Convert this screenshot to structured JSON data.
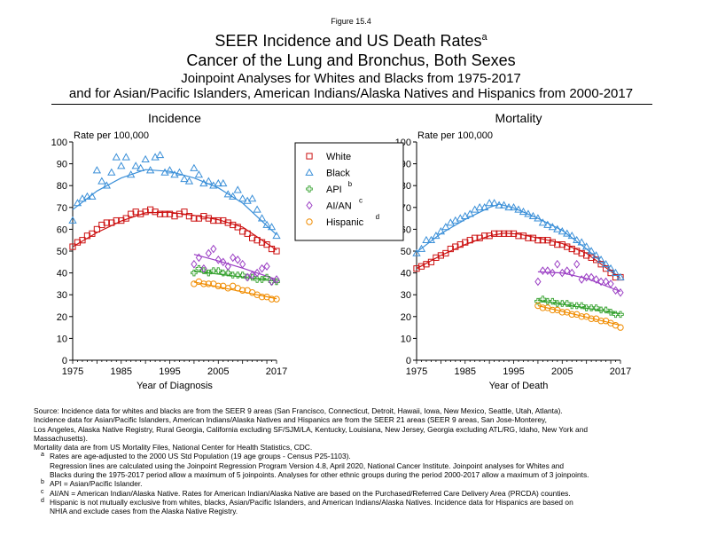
{
  "figure": {
    "label": "Figure 15.4",
    "title_line1": "SEER Incidence and US Death Rates",
    "title_sup": "a",
    "title_line2": "Cancer of the Lung and Bronchus, Both Sexes",
    "title_line3": "Joinpoint Analyses for Whites and Blacks from 1975-2017",
    "title_line4": "and for Asian/Pacific Islanders, American Indians/Alaska Natives and Hispanics from 2000-2017"
  },
  "legend": {
    "items": [
      {
        "label": "White",
        "sup": ""
      },
      {
        "label": "Black",
        "sup": ""
      },
      {
        "label": "API",
        "sup": "b"
      },
      {
        "label": "AI/AN",
        "sup": "c"
      },
      {
        "label": "Hispanic",
        "sup": "d"
      }
    ]
  },
  "colors": {
    "White": "#cc1111",
    "Black": "#3a8fd8",
    "API": "#33a02c",
    "AI/AN": "#9b3fc4",
    "Hispanic": "#f08c00"
  },
  "chart_data": [
    {
      "type": "scatter",
      "title": "Incidence",
      "ylabel": "Rate per 100,000",
      "xlabel": "Year of Diagnosis",
      "xlim": [
        1975,
        2017
      ],
      "ylim": [
        0,
        100
      ],
      "xticks": [
        1975,
        1985,
        1995,
        2005,
        2017
      ],
      "yticks": [
        0,
        10,
        20,
        30,
        40,
        50,
        60,
        70,
        80,
        90,
        100
      ],
      "series": [
        {
          "name": "White",
          "marker": "square",
          "x0": 1975,
          "values": [
            52,
            54,
            55,
            57,
            58,
            60,
            62,
            63,
            63,
            64,
            64,
            65,
            67,
            68,
            67,
            68,
            69,
            68,
            67,
            67,
            67,
            66,
            67,
            68,
            66,
            65,
            65,
            66,
            65,
            64,
            64,
            64,
            63,
            62,
            61,
            59,
            58,
            56,
            55,
            54,
            53,
            51,
            50
          ]
        },
        {
          "name": "Black",
          "marker": "triangle",
          "x0": 1975,
          "values": [
            64,
            72,
            74,
            75,
            75,
            87,
            82,
            80,
            86,
            93,
            89,
            93,
            85,
            89,
            88,
            92,
            87,
            93,
            94,
            86,
            87,
            85,
            86,
            83,
            82,
            88,
            85,
            81,
            82,
            80,
            81,
            81,
            76,
            75,
            78,
            74,
            73,
            74,
            69,
            65,
            62,
            61,
            57
          ]
        },
        {
          "name": "API",
          "marker": "plus",
          "x0": 2000,
          "values": [
            40,
            42,
            41,
            40,
            41,
            41,
            40,
            40,
            39,
            39,
            39,
            38,
            38,
            37,
            37,
            38,
            36,
            36
          ]
        },
        {
          "name": "AI/AN",
          "marker": "diamond",
          "x0": 2000,
          "values": [
            44,
            47,
            42,
            49,
            51,
            46,
            45,
            43,
            47,
            46,
            44,
            38,
            39,
            40,
            42,
            43,
            36,
            37
          ]
        },
        {
          "name": "Hispanic",
          "marker": "circle",
          "x0": 2000,
          "values": [
            35,
            36,
            35,
            35,
            35,
            34,
            34,
            33,
            34,
            33,
            32,
            32,
            31,
            30,
            29,
            29,
            28,
            28
          ]
        }
      ],
      "fits": [
        {
          "name": "White",
          "points": [
            [
              1975,
              52
            ],
            [
              1980,
              58.5
            ],
            [
              1985,
              63.8
            ],
            [
              1990,
              67.5
            ],
            [
              1995,
              67.8
            ],
            [
              2000,
              66.4
            ],
            [
              2005,
              64.4
            ],
            [
              2010,
              61
            ],
            [
              2017,
              50.5
            ]
          ]
        },
        {
          "name": "Black",
          "points": [
            [
              1975,
              69
            ],
            [
              1980,
              77.5
            ],
            [
              1985,
              83.5
            ],
            [
              1990,
              87.3
            ],
            [
              1995,
              86.5
            ],
            [
              2000,
              83.5
            ],
            [
              2005,
              79
            ],
            [
              2010,
              72
            ],
            [
              2017,
              57.5
            ]
          ]
        },
        {
          "name": "API",
          "points": [
            [
              2000,
              40.8
            ],
            [
              2017,
              36.2
            ]
          ]
        },
        {
          "name": "AI/AN",
          "points": [
            [
              2000,
              48.5
            ],
            [
              2005,
              45.5
            ],
            [
              2010,
              42.2
            ],
            [
              2017,
              37
            ]
          ]
        },
        {
          "name": "Hispanic",
          "points": [
            [
              2000,
              35.8
            ],
            [
              2017,
              28.2
            ]
          ]
        }
      ]
    },
    {
      "type": "scatter",
      "title": "Mortality",
      "ylabel": "Rate per 100,000",
      "xlabel": "Year of Death",
      "xlim": [
        1975,
        2017
      ],
      "ylim": [
        0,
        100
      ],
      "xticks": [
        1975,
        1985,
        1995,
        2005,
        2017
      ],
      "yticks": [
        0,
        10,
        20,
        30,
        40,
        50,
        60,
        70,
        80,
        90,
        100
      ],
      "series": [
        {
          "name": "White",
          "marker": "square",
          "x0": 1975,
          "values": [
            42,
            43,
            44,
            45,
            47,
            48,
            49,
            51,
            52,
            53,
            54,
            55,
            56,
            56,
            57,
            57,
            58,
            58,
            58,
            58,
            58,
            57,
            57,
            56,
            56,
            55,
            55,
            55,
            54,
            53,
            53,
            52,
            51,
            50,
            49,
            48,
            47,
            46,
            44,
            42,
            40,
            38,
            38
          ]
        },
        {
          "name": "Black",
          "marker": "triangle",
          "x0": 1975,
          "values": [
            49,
            51,
            55,
            55,
            57,
            59,
            61,
            63,
            64,
            65,
            66,
            67,
            69,
            70,
            70,
            72,
            72,
            71,
            71,
            70,
            70,
            69,
            68,
            67,
            66,
            65,
            63,
            62,
            61,
            60,
            59,
            58,
            57,
            55,
            54,
            52,
            50,
            48,
            46,
            44,
            42,
            40,
            38
          ]
        },
        {
          "name": "API",
          "marker": "plus",
          "x0": 2000,
          "values": [
            27,
            28,
            27,
            27,
            26,
            26,
            26,
            25,
            25,
            25,
            24,
            24,
            24,
            23,
            23,
            22,
            21,
            21
          ]
        },
        {
          "name": "AI/AN",
          "marker": "diamond",
          "x0": 2000,
          "values": [
            36,
            41,
            41,
            40,
            44,
            40,
            41,
            40,
            44,
            37,
            38,
            38,
            37,
            36,
            36,
            35,
            32,
            31
          ]
        },
        {
          "name": "Hispanic",
          "marker": "circle",
          "x0": 2000,
          "values": [
            25,
            24,
            24,
            23,
            23,
            22,
            22,
            21,
            21,
            20,
            20,
            19,
            19,
            18,
            18,
            17,
            16,
            15
          ]
        }
      ],
      "fits": [
        {
          "name": "White",
          "points": [
            [
              1975,
              42
            ],
            [
              1980,
              48
            ],
            [
              1985,
              53
            ],
            [
              1990,
              57
            ],
            [
              1993,
              58.2
            ],
            [
              1996,
              57.8
            ],
            [
              2000,
              56
            ],
            [
              2005,
              53.5
            ],
            [
              2010,
              49
            ],
            [
              2017,
              37.5
            ]
          ]
        },
        {
          "name": "Black",
          "points": [
            [
              1975,
              49.5
            ],
            [
              1980,
              58
            ],
            [
              1985,
              64.5
            ],
            [
              1990,
              70
            ],
            [
              1992,
              71.5
            ],
            [
              1995,
              69.8
            ],
            [
              2000,
              65
            ],
            [
              2005,
              59.5
            ],
            [
              2010,
              51
            ],
            [
              2017,
              37.5
            ]
          ]
        },
        {
          "name": "API",
          "points": [
            [
              2000,
              27.5
            ],
            [
              2017,
              21.3
            ]
          ]
        },
        {
          "name": "AI/AN",
          "points": [
            [
              2000,
              40.5
            ],
            [
              2005,
              40
            ],
            [
              2010,
              37.5
            ],
            [
              2017,
              31.5
            ]
          ]
        },
        {
          "name": "Hispanic",
          "points": [
            [
              2000,
              25
            ],
            [
              2017,
              16
            ]
          ]
        }
      ]
    }
  ],
  "footnotes": {
    "source_lines": [
      "Source:  Incidence data for whites and blacks are from the SEER 9 areas (San Francisco, Connecticut, Detroit, Hawaii, Iowa, New Mexico, Seattle, Utah, Atlanta).",
      "Incidence data for Asian/Pacific Islanders, American Indians/Alaska Natives and Hispanics are from the SEER 21 areas (SEER 9 areas, San Jose-Monterey,",
      "Los Angeles, Alaska Native Registry, Rural Georgia, California excluding SF/SJM/LA, Kentucky, Louisiana, New Jersey, Georgia excluding ATL/RG, Idaho, New York and",
      "Massachusetts).",
      "Mortality data are from US Mortality Files, National Center for Health Statistics, CDC."
    ],
    "a_mark": "a",
    "a_lines": [
      "Rates are age-adjusted to the 2000 US Std Population (19 age groups - Census P25-1103).",
      "Regression lines are calculated using the Joinpoint Regression Program Version 4.8, April 2020, National Cancer Institute.  Joinpoint analyses for Whites and",
      "Blacks during the 1975-2017 period allow a maximum of 5 joinpoints. Analyses for other ethnic groups during the period 2000-2017 allow a maximum of 3 joinpoints."
    ],
    "b_mark": "b",
    "b_text": "API = Asian/Pacific Islander.",
    "c_mark": "c",
    "c_text": "AI/AN = American Indian/Alaska Native.  Rates for American Indian/Alaska Native are based on the Purchased/Referred Care Delivery Area (PRCDA) counties.",
    "d_mark": "d",
    "d_lines": [
      "Hispanic is not mutually exclusive from whites, blacks, Asian/Pacific Islanders, and American Indians/Alaska Natives.  Incidence data for Hispanics are based on",
      "NHIA and exclude cases from the Alaska Native Registry."
    ]
  }
}
